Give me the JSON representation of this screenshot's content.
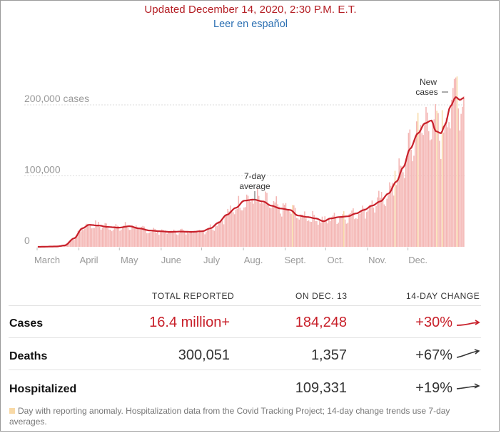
{
  "header": {
    "updated": "Updated December 14, 2020, 2:30 P.M. E.T.",
    "spanish_link": "Leer en español"
  },
  "chart_data": {
    "type": "bar",
    "title": "",
    "series_bars_name": "New cases",
    "series_line_name": "7-day average",
    "ylim": [
      0,
      200000
    ],
    "yticks": [
      {
        "value": 0,
        "label": "0"
      },
      {
        "value": 100000,
        "label": "100,000"
      },
      {
        "value": 200000,
        "label": "200,000 cases"
      }
    ],
    "month_labels": [
      "March",
      "April",
      "May",
      "June",
      "July",
      "Aug.",
      "Sept.",
      "Oct.",
      "Nov.",
      "Dec."
    ],
    "annotations": {
      "avg_line1": "7-day",
      "avg_line2": "average",
      "new_line1": "New",
      "new_line2": "cases"
    },
    "avg_knots": [
      [
        0,
        0
      ],
      [
        14,
        500
      ],
      [
        20,
        2000
      ],
      [
        27,
        12000
      ],
      [
        33,
        26000
      ],
      [
        38,
        31000
      ],
      [
        45,
        30000
      ],
      [
        52,
        28000
      ],
      [
        60,
        27000
      ],
      [
        68,
        29000
      ],
      [
        75,
        26000
      ],
      [
        83,
        23000
      ],
      [
        90,
        22000
      ],
      [
        98,
        21000
      ],
      [
        106,
        21500
      ],
      [
        114,
        21000
      ],
      [
        122,
        22000
      ],
      [
        128,
        26000
      ],
      [
        134,
        34000
      ],
      [
        140,
        45000
      ],
      [
        147,
        55000
      ],
      [
        153,
        65000
      ],
      [
        160,
        66500
      ],
      [
        167,
        64000
      ],
      [
        173,
        58000
      ],
      [
        180,
        54000
      ],
      [
        187,
        52000
      ],
      [
        193,
        44000
      ],
      [
        200,
        42000
      ],
      [
        206,
        40000
      ],
      [
        212,
        36000
      ],
      [
        217,
        40000
      ],
      [
        224,
        42000
      ],
      [
        230,
        43000
      ],
      [
        236,
        47000
      ],
      [
        242,
        52000
      ],
      [
        248,
        58000
      ],
      [
        254,
        64000
      ],
      [
        260,
        75000
      ],
      [
        266,
        92000
      ],
      [
        271,
        112000
      ],
      [
        276,
        138000
      ],
      [
        282,
        160000
      ],
      [
        287,
        174000
      ],
      [
        292,
        178000
      ],
      [
        295,
        163000
      ],
      [
        299,
        160000
      ],
      [
        302,
        172000
      ],
      [
        306,
        198000
      ],
      [
        310,
        211000
      ],
      [
        313,
        207000
      ],
      [
        316,
        210000
      ]
    ],
    "anomaly_days": [
      189,
      227,
      265,
      282,
      296,
      300,
      311
    ],
    "summary_headers": [
      "TOTAL REPORTED",
      "ON DEC. 13",
      "14-DAY CHANGE"
    ],
    "summary_rows": [
      {
        "label": "Cases",
        "total": "16.4 million+",
        "day": "184,248",
        "change": "+30%"
      },
      {
        "label": "Deaths",
        "total": "300,051",
        "day": "1,357",
        "change": "+67%"
      },
      {
        "label": "Hospitalized",
        "total": "",
        "day": "109,331",
        "change": "+19%"
      }
    ],
    "footnote": "Day with reporting anomaly. Hospitalization data from the Covid Tracking Project; 14-day change trends use 7-day averages."
  },
  "colors": {
    "bar": "#f4b6b4",
    "anomaly": "#f8d9a6",
    "line": "#c8202a",
    "grid": "#dddddd",
    "axis_text": "#999999"
  }
}
